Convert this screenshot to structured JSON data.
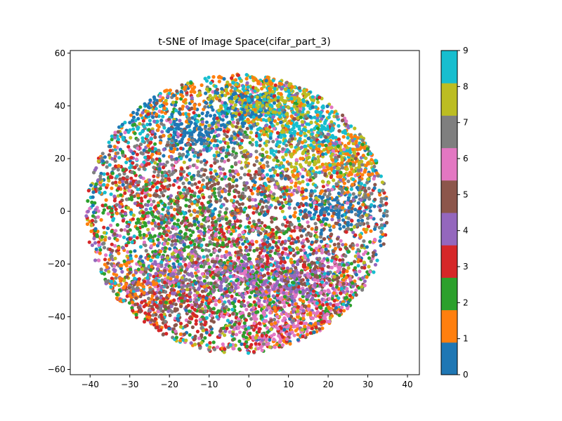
{
  "chart_data": {
    "type": "scatter",
    "title": "t-SNE of Image Space(cifar_part_3)",
    "xlabel": "",
    "ylabel": "",
    "xlim": [
      -45,
      43
    ],
    "ylim": [
      -62,
      61
    ],
    "xticks": [
      -40,
      -30,
      -20,
      -10,
      0,
      10,
      20,
      30,
      40
    ],
    "xtick_labels": [
      "−40",
      "−30",
      "−20",
      "−10",
      "0",
      "10",
      "20",
      "30",
      "40"
    ],
    "yticks": [
      -60,
      -40,
      -20,
      0,
      20,
      40,
      60
    ],
    "ytick_labels": [
      "−60",
      "−40",
      "−20",
      "0",
      "20",
      "40",
      "60"
    ],
    "grid": false,
    "legend": "none",
    "colorbar": {
      "label": "",
      "min": 0,
      "max": 9,
      "ticks": [
        "0",
        "1",
        "2",
        "3",
        "4",
        "5",
        "6",
        "7",
        "8",
        "9"
      ],
      "colormap": "tab10",
      "colors": [
        "#1f77b4",
        "#ff7f0e",
        "#2ca02c",
        "#d62728",
        "#9467bd",
        "#8c564b",
        "#e377c2",
        "#7f7f7f",
        "#bcbd22",
        "#17becf"
      ]
    },
    "class_clusters": [
      {
        "class": 0,
        "centers": [
          [
            -14,
            30
          ],
          [
            -28,
            42
          ],
          [
            22,
            1
          ],
          [
            0,
            40
          ]
        ],
        "spread": [
          5,
          4
        ]
      },
      {
        "class": 1,
        "centers": [
          [
            8,
            48
          ],
          [
            -20,
            46
          ],
          [
            25,
            20
          ],
          [
            -30,
            -28
          ],
          [
            18,
            -42
          ]
        ],
        "spread": [
          8,
          6
        ]
      },
      {
        "class": 2,
        "centers": [
          [
            -10,
            -10
          ],
          [
            0,
            -30
          ],
          [
            -25,
            -5
          ],
          [
            20,
            -35
          ]
        ],
        "spread": [
          10,
          10
        ]
      },
      {
        "class": 3,
        "centers": [
          [
            -20,
            -40
          ],
          [
            5,
            -15
          ],
          [
            -28,
            10
          ],
          [
            15,
            -50
          ]
        ],
        "spread": [
          9,
          9
        ]
      },
      {
        "class": 4,
        "centers": [
          [
            0,
            -25
          ],
          [
            12,
            -28
          ],
          [
            -22,
            -25
          ]
        ],
        "spread": [
          7,
          6
        ]
      },
      {
        "class": 5,
        "centers": [
          [
            -20,
            -35
          ],
          [
            -5,
            0
          ],
          [
            15,
            -20
          ]
        ],
        "spread": [
          9,
          9
        ]
      },
      {
        "class": 6,
        "centers": [
          [
            15,
            -45
          ],
          [
            5,
            -40
          ],
          [
            -10,
            -18
          ],
          [
            20,
            -30
          ]
        ],
        "spread": [
          8,
          8
        ]
      },
      {
        "class": 7,
        "centers": [
          [
            0,
            15
          ],
          [
            -25,
            15
          ],
          [
            -15,
            -20
          ],
          [
            30,
            5
          ]
        ],
        "spread": [
          9,
          9
        ]
      },
      {
        "class": 8,
        "centers": [
          [
            2,
            40
          ],
          [
            18,
            20
          ],
          [
            12,
            42
          ]
        ],
        "spread": [
          7,
          6
        ]
      },
      {
        "class": 9,
        "centers": [
          [
            15,
            35
          ],
          [
            28,
            25
          ],
          [
            -30,
            35
          ],
          [
            10,
            45
          ]
        ],
        "spread": [
          9,
          8
        ]
      }
    ],
    "points_per_class": 700
  }
}
